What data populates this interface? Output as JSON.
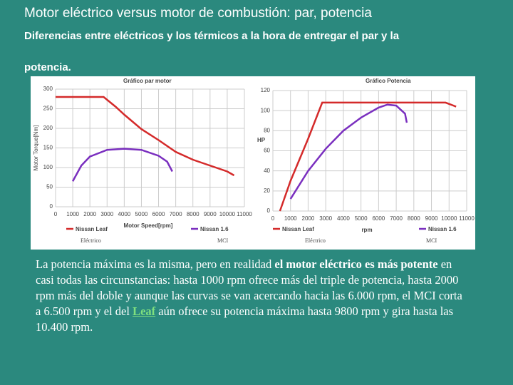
{
  "header": {
    "title": "Motor eléctrico versus motor de combustión: par, potencia",
    "subtitle": "Diferencias entre  eléctricos y los térmicos a la hora de entregar el par y la",
    "subtitle_end": "potencia."
  },
  "chart_data": [
    {
      "type": "line",
      "title": "Gráfico par motor",
      "x_label": "Motor Speed[rpm]",
      "y_label": "Motor Torque[Nm]",
      "xlim": [
        0,
        11000
      ],
      "xticks": [
        0,
        1000,
        2000,
        3000,
        4000,
        5000,
        6000,
        7000,
        8000,
        9000,
        10000,
        11000
      ],
      "ylim": [
        0,
        300
      ],
      "yticks": [
        0,
        50,
        100,
        150,
        200,
        250,
        300
      ],
      "grid": true,
      "series": [
        {
          "name": "Nissan Leaf",
          "color": "#d42a2a",
          "x": [
            0,
            1000,
            2000,
            2800,
            3500,
            4000,
            5000,
            6000,
            7000,
            8000,
            9000,
            10000,
            10400
          ],
          "values": [
            280,
            280,
            280,
            280,
            255,
            235,
            198,
            170,
            140,
            120,
            105,
            90,
            80
          ]
        },
        {
          "name": "Nissan 1.6",
          "color": "#7a2fbf",
          "x": [
            1000,
            1500,
            2000,
            3000,
            4000,
            5000,
            6000,
            6500,
            6800
          ],
          "values": [
            65,
            105,
            128,
            145,
            148,
            145,
            130,
            115,
            90
          ]
        }
      ],
      "annotations": [
        "Eléctrico",
        "MCI"
      ]
    },
    {
      "type": "line",
      "title": "Gráfico Potencia",
      "x_label": "rpm",
      "y_label": "HP",
      "xlim": [
        0,
        11000
      ],
      "xticks": [
        0,
        1000,
        2000,
        3000,
        4000,
        5000,
        6000,
        7000,
        8000,
        9000,
        10000,
        11000
      ],
      "ylim": [
        0,
        120
      ],
      "yticks": [
        0,
        20,
        40,
        60,
        80,
        100,
        120
      ],
      "grid": true,
      "series": [
        {
          "name": "Nissan Leaf",
          "color": "#d42a2a",
          "x": [
            400,
            1000,
            2000,
            2800,
            3000,
            5000,
            7000,
            9800,
            10400
          ],
          "values": [
            0,
            30,
            72,
            108,
            108,
            108,
            108,
            108,
            104
          ]
        },
        {
          "name": "Nissan 1.6",
          "color": "#7a2fbf",
          "x": [
            1000,
            2000,
            3000,
            4000,
            5000,
            6000,
            6500,
            7000,
            7500,
            7600
          ],
          "values": [
            12,
            40,
            62,
            80,
            93,
            103,
            106,
            105,
            97,
            88
          ]
        }
      ],
      "annotations": [
        "Eléctrico",
        "MCI"
      ]
    }
  ],
  "paragraph": [
    "La potencia máxima es la misma, pero en realidad ",
    "el motor eléctrico es más potente",
    " en casi todas las circunstancias: hasta 1000 rpm ofrece más del triple de potencia, hasta 2000 rpm más del doble y aunque las curvas se van acercando hacia las 6.000 rpm, el MCI corta a 6.500 rpm y el del ",
    "Leaf",
    " aún ofrece su potencia máxima hasta 9800 rpm y gira hasta las 10.400 rpm."
  ]
}
